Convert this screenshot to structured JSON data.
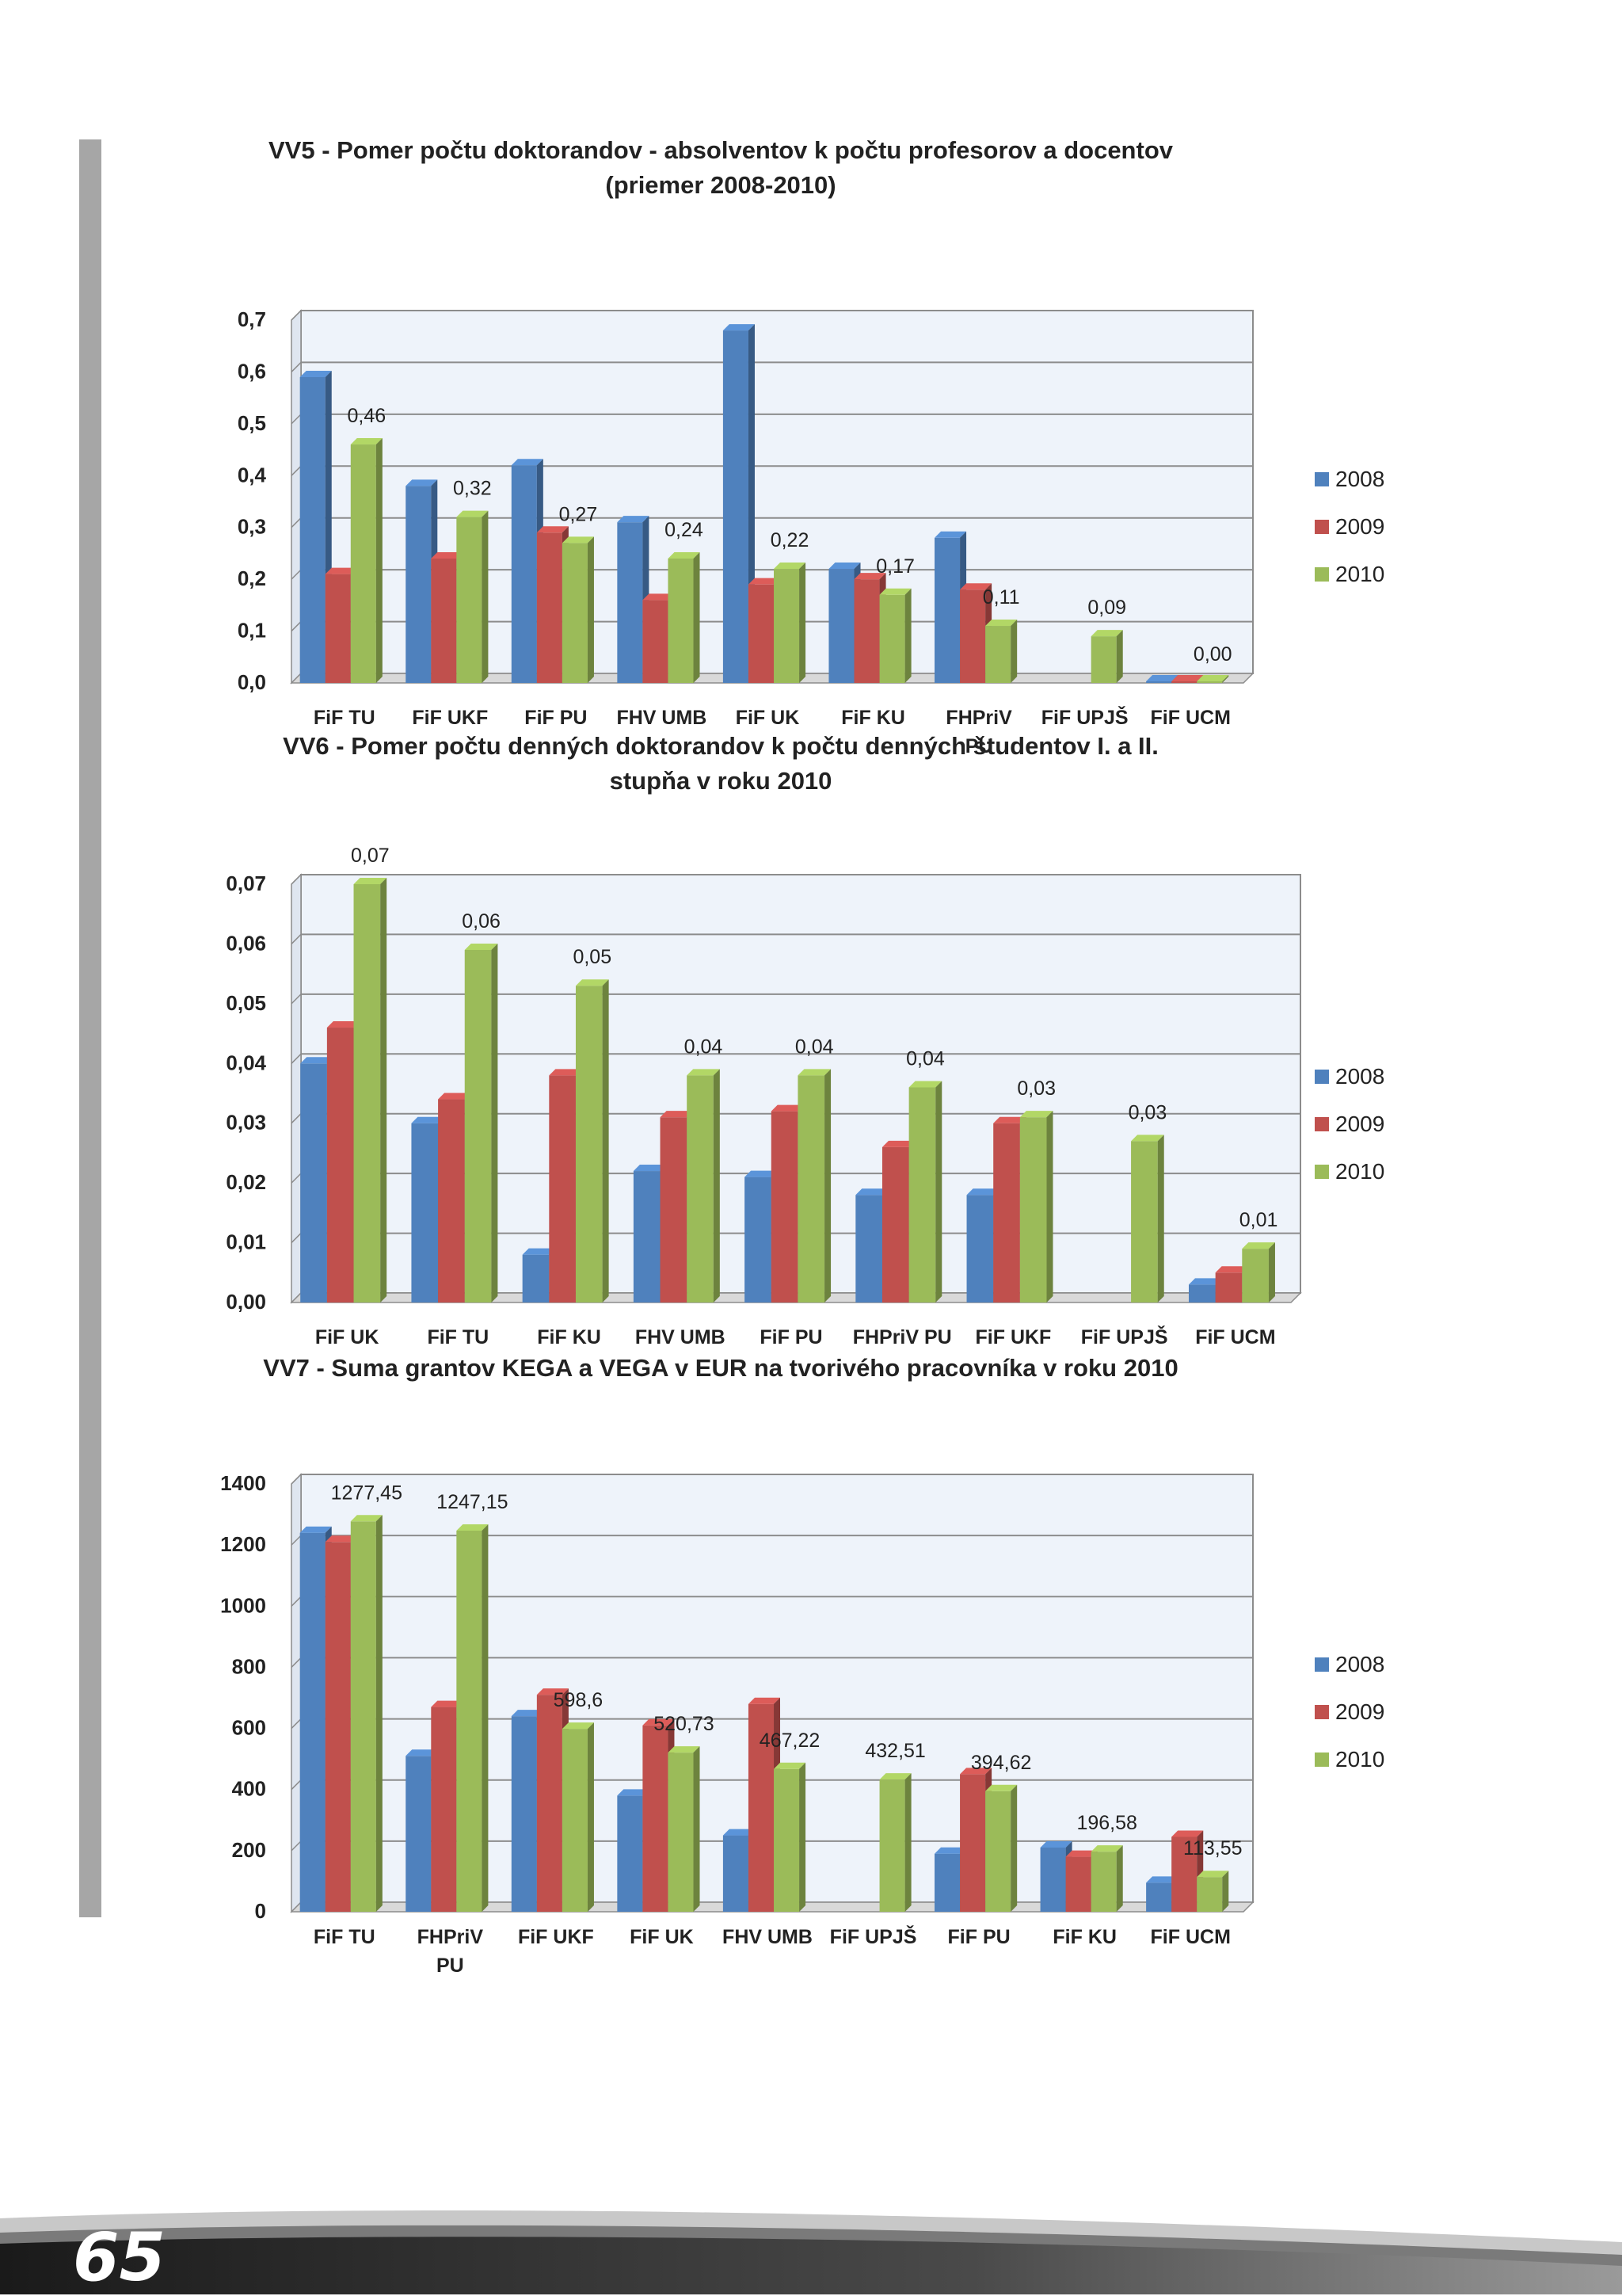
{
  "page": {
    "number": "65"
  },
  "colors": {
    "s2008": "#4f81bd",
    "s2009": "#c0504d",
    "s2010": "#9bbb59",
    "plot_bg": "#eef3fa",
    "grid": "#8c8c8c"
  },
  "chart_data": [
    {
      "id": "vv5",
      "type": "bar",
      "title": [
        "VV5 - Pomer počtu doktorandov - absolventov k počtu profesorov a docentov",
        "(priemer 2008-2010)"
      ],
      "categories": [
        "FiF TU",
        "FiF  UKF",
        "FiF PU",
        "FHV UMB",
        "FiF UK",
        "FiF  KU",
        "FHPriV\nPU",
        "FiF UPJŠ",
        "FiF  UCM"
      ],
      "series": [
        {
          "name": "2008",
          "values": [
            0.59,
            0.38,
            0.42,
            0.31,
            0.68,
            0.22,
            0.28,
            null,
            0.0
          ]
        },
        {
          "name": "2009",
          "values": [
            0.21,
            0.24,
            0.29,
            0.16,
            0.19,
            0.2,
            0.18,
            null,
            0.0
          ]
        },
        {
          "name": "2010",
          "values": [
            0.46,
            0.32,
            0.27,
            0.24,
            0.22,
            0.17,
            0.11,
            0.09,
            0.0
          ]
        }
      ],
      "data_labels": [
        "0,46",
        "0,32",
        "0,27",
        "0,24",
        "0,22",
        "0,17",
        "0,11",
        "0,09",
        "0,00"
      ],
      "yticks": [
        "0,0",
        "0,1",
        "0,2",
        "0,3",
        "0,4",
        "0,5",
        "0,6",
        "0,7"
      ],
      "ylim": [
        0,
        0.7
      ],
      "legend": "right"
    },
    {
      "id": "vv6",
      "type": "bar",
      "title": [
        "VV6 - Pomer počtu denných doktorandov k počtu denných študentov I. a II.",
        "stupňa v roku 2010"
      ],
      "categories": [
        "FiF UK",
        "FiF TU",
        "FiF  KU",
        "FHV UMB",
        "FiF PU",
        "FHPriV  PU",
        "FiF  UKF",
        "FiF UPJŠ",
        "FiF  UCM"
      ],
      "series": [
        {
          "name": "2008",
          "values": [
            0.04,
            0.03,
            0.008,
            0.022,
            0.021,
            0.018,
            0.018,
            null,
            0.003
          ]
        },
        {
          "name": "2009",
          "values": [
            0.046,
            0.034,
            0.038,
            0.031,
            0.032,
            0.026,
            0.03,
            null,
            0.005
          ]
        },
        {
          "name": "2010",
          "values": [
            0.07,
            0.059,
            0.053,
            0.038,
            0.038,
            0.036,
            0.031,
            0.027,
            0.009
          ]
        }
      ],
      "data_labels": [
        "0,07",
        "0,06",
        "0,05",
        "0,04",
        "0,04",
        "0,04",
        "0,03",
        "0,03",
        "0,01"
      ],
      "yticks": [
        "0,00",
        "0,01",
        "0,02",
        "0,03",
        "0,04",
        "0,05",
        "0,06",
        "0,07"
      ],
      "ylim": [
        0,
        0.07
      ],
      "legend": "right"
    },
    {
      "id": "vv7",
      "type": "bar",
      "title": [
        "VV7 - Suma grantov KEGA a VEGA v EUR na tvorivého pracovníka v roku 2010"
      ],
      "categories": [
        "FiF TU",
        "FHPriV\nPU",
        "FiF  UKF",
        "FiF UK",
        "FHV UMB",
        "FiF UPJŠ",
        "FiF PU",
        "FiF  KU",
        "FiF  UCM"
      ],
      "series": [
        {
          "name": "2008",
          "values": [
            1240,
            510,
            640,
            380,
            250,
            null,
            190,
            210,
            95
          ]
        },
        {
          "name": "2009",
          "values": [
            1210,
            670,
            710,
            610,
            680,
            null,
            450,
            180,
            245
          ]
        },
        {
          "name": "2010",
          "values": [
            1277.45,
            1247.15,
            598.6,
            520.73,
            467.22,
            432.51,
            394.62,
            196.58,
            113.55
          ]
        }
      ],
      "data_labels": [
        "1277,45",
        "1247,15",
        "598,6",
        "520,73",
        "467,22",
        "432,51",
        "394,62",
        "196,58",
        "113,55"
      ],
      "yticks": [
        "0",
        "200",
        "400",
        "600",
        "800",
        "1000",
        "1200",
        "1400"
      ],
      "ylim": [
        0,
        1400
      ],
      "legend": "right"
    }
  ]
}
